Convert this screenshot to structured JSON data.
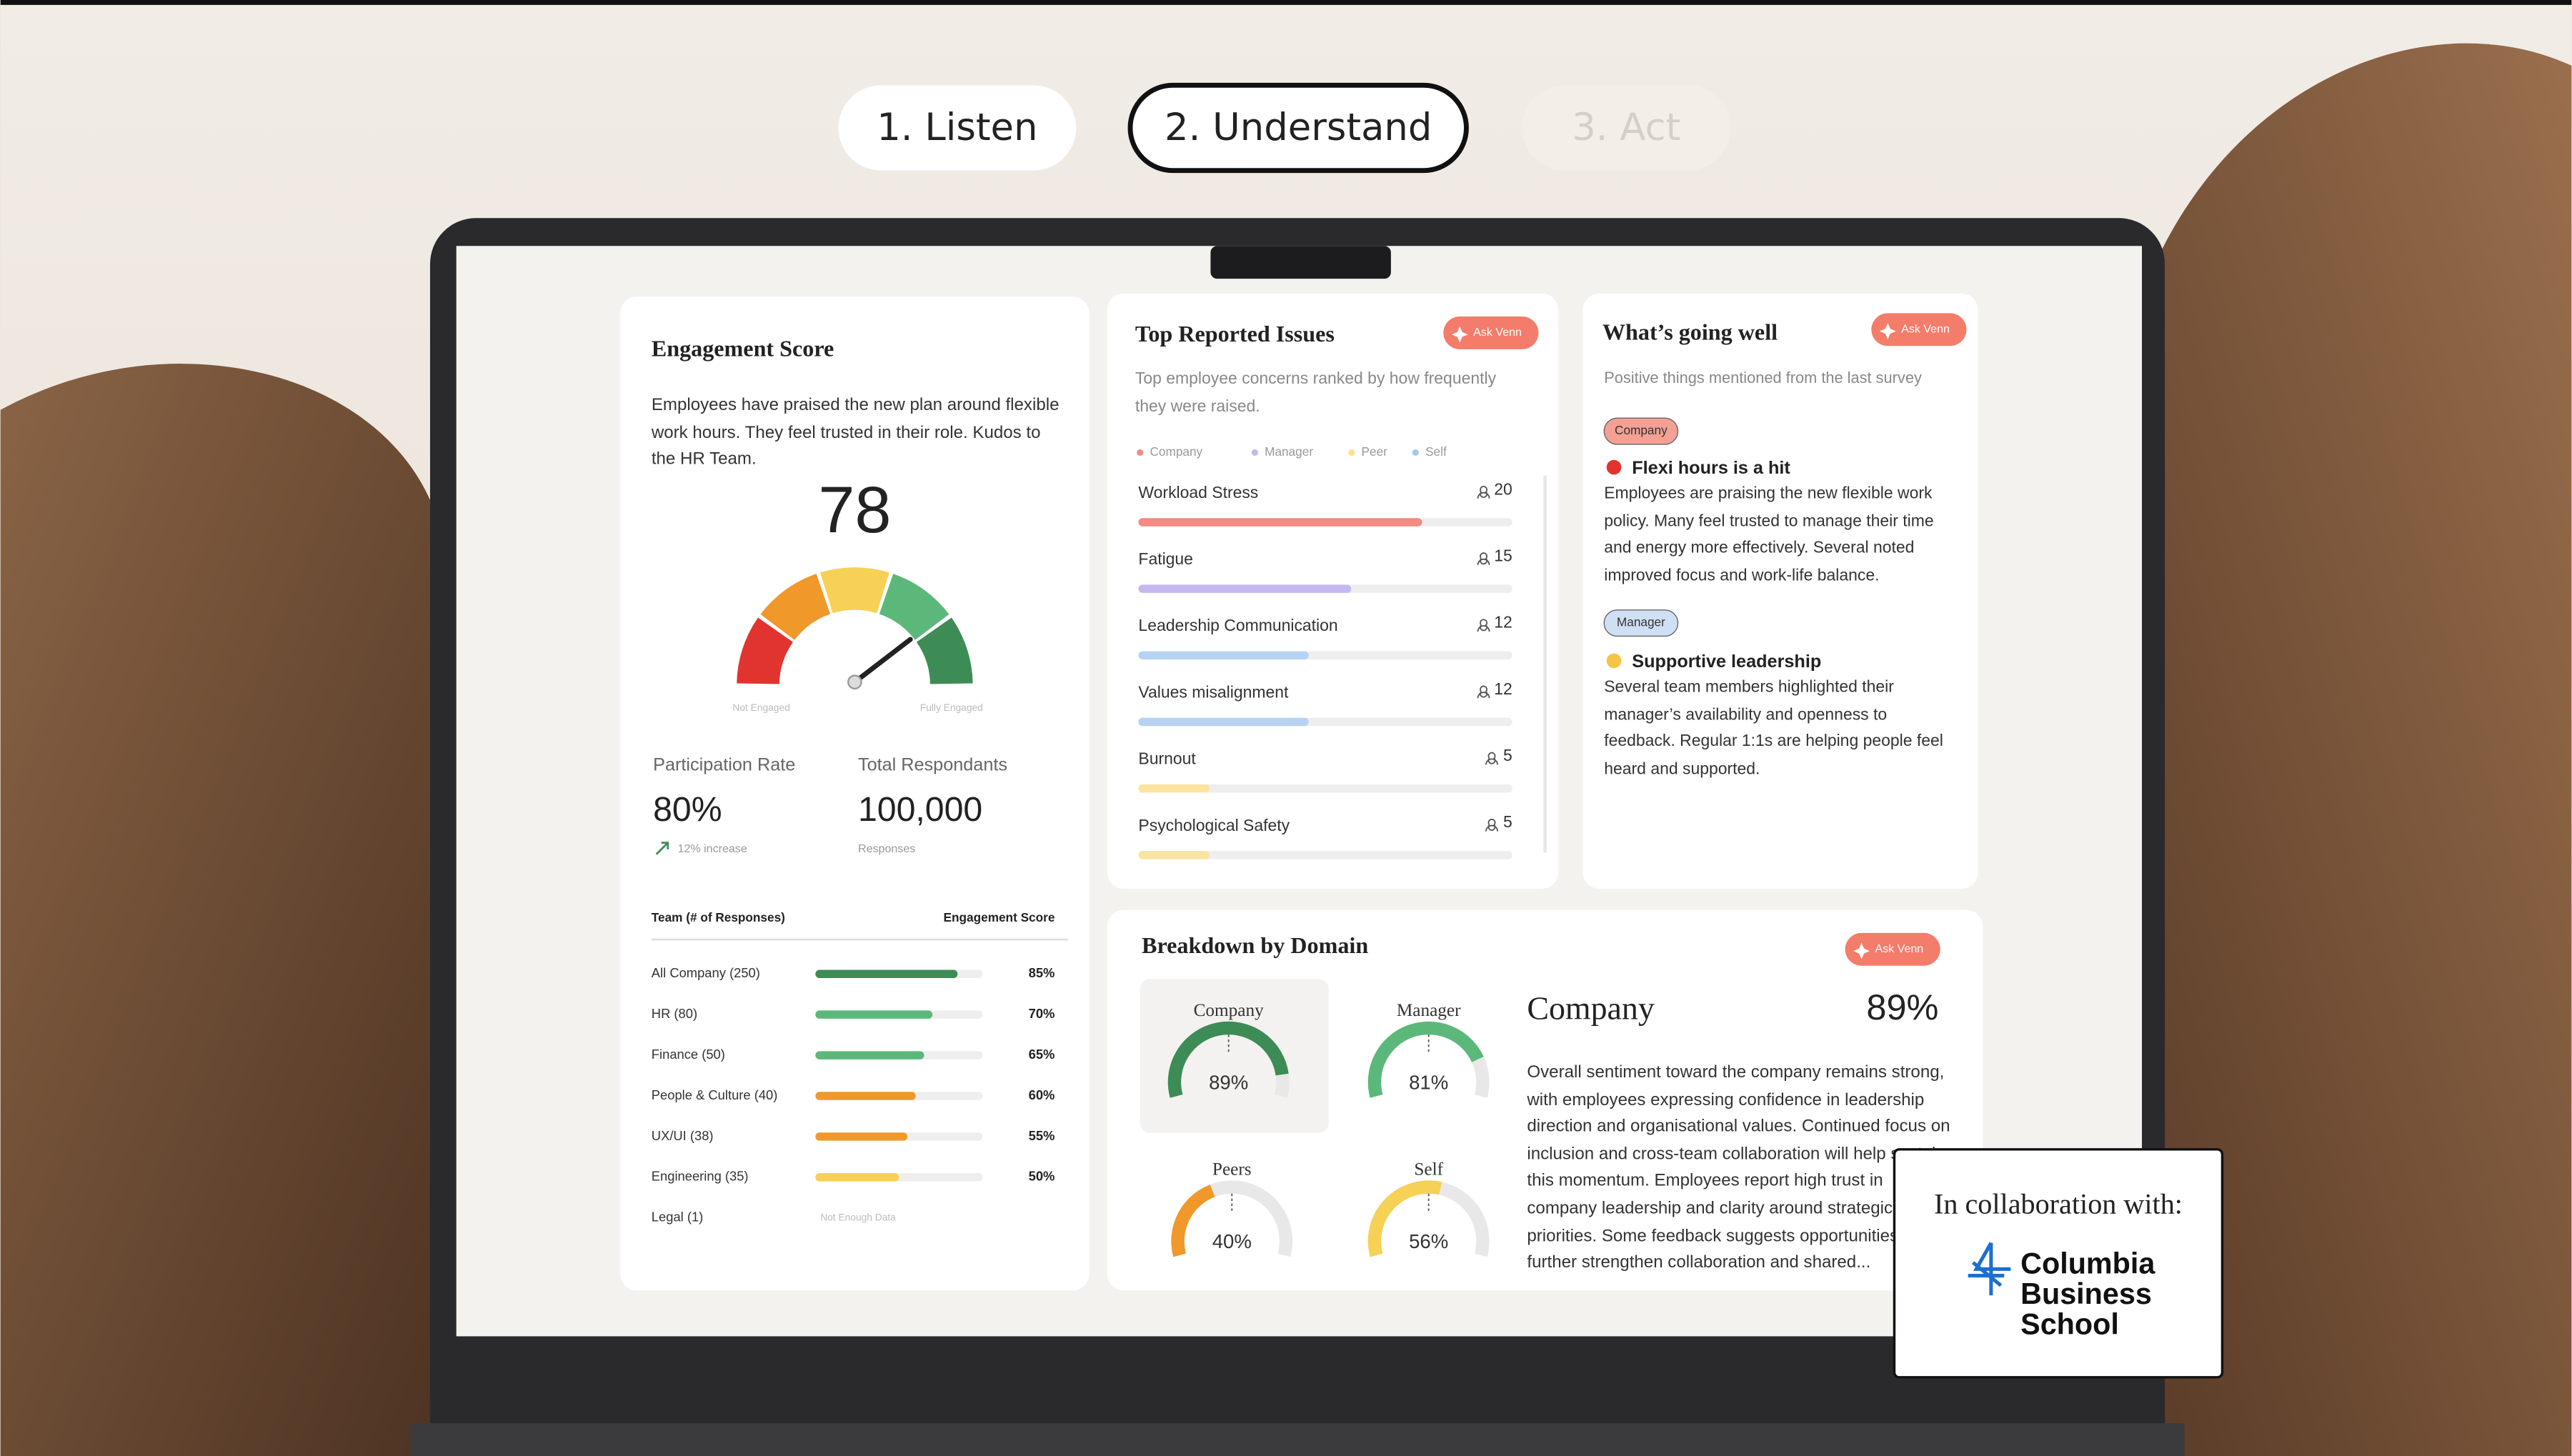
{
  "tabs": [
    "1. Listen",
    "2. Understand",
    "3. Act"
  ],
  "engagement": {
    "title": "Engagement Score",
    "description": "Employees have praised the new plan around flexible work hours. They feel trusted in their role. Kudos to the HR Team.",
    "score": 78,
    "gauge_min_label": "Not Engaged",
    "gauge_max_label": "Fully Engaged",
    "participation": {
      "label": "Participation Rate",
      "value": "80%",
      "note": "12% increase"
    },
    "respondents": {
      "label": "Total Respondants",
      "value": "100,000",
      "note": "Responses"
    },
    "table": {
      "headers": [
        "Team (# of Responses)",
        "Engagement Score"
      ],
      "rows": [
        {
          "team": "All Company (250)",
          "score": 85,
          "score_label": "85%",
          "color": "#3d8c55"
        },
        {
          "team": "HR (80)",
          "score": 70,
          "score_label": "70%",
          "color": "#5cb87a"
        },
        {
          "team": "Finance (50)",
          "score": 65,
          "score_label": "65%",
          "color": "#5cb87a"
        },
        {
          "team": "People & Culture (40)",
          "score": 60,
          "score_label": "60%",
          "color": "#f0982a"
        },
        {
          "team": "UX/UI (38)",
          "score": 55,
          "score_label": "55%",
          "color": "#f0982a"
        },
        {
          "team": "Engineering (35)",
          "score": 50,
          "score_label": "50%",
          "color": "#f6d155"
        },
        {
          "team": "Legal (1)",
          "score": null,
          "score_label": "Not Enough Data",
          "color": "#cccccc"
        }
      ]
    }
  },
  "issues": {
    "title": "Top Reported Issues",
    "ask": "Ask Venn",
    "subtitle": "Top employee concerns ranked by how frequently they were raised.",
    "legend": [
      {
        "name": "Company",
        "color": "#f28b82"
      },
      {
        "name": "Manager",
        "color": "#c5b8f0"
      },
      {
        "name": "Peer",
        "color": "#ffe08a"
      },
      {
        "name": "Self",
        "color": "#a8c7f0"
      }
    ],
    "items": [
      {
        "name": "Workload Stress",
        "count": 20,
        "color": "#f28b82"
      },
      {
        "name": "Fatigue",
        "count": 15,
        "color": "#c5b8f0"
      },
      {
        "name": "Leadership Communication",
        "count": 12,
        "color": "#b7d3f4"
      },
      {
        "name": "Values misalignment",
        "count": 12,
        "color": "#b7d3f4"
      },
      {
        "name": "Burnout",
        "count": 5,
        "color": "#fbe3a0"
      },
      {
        "name": "Psychological Safety",
        "count": 5,
        "color": "#fbe3a0"
      }
    ]
  },
  "going_well": {
    "title": "What’s going well",
    "ask": "Ask Venn",
    "subtitle": "Positive things mentioned from the last survey",
    "items": [
      {
        "tag": "Company",
        "tag_color": "#f4a094",
        "title": "Flexi hours is a hit",
        "text": "Employees are praising the new flexible work policy. Many feel trusted to manage their time and energy more effectively. Several noted improved focus and work-life balance."
      },
      {
        "tag": "Manager",
        "tag_color": "#cfe0f5",
        "title": "Supportive leadership",
        "text": "Several team members highlighted their manager’s availability and openness to feedback. Regular 1:1s are helping people feel heard and supported."
      }
    ]
  },
  "breakdown": {
    "title": "Breakdown by Domain",
    "ask": "Ask Venn",
    "domains": [
      {
        "name": "Company",
        "value": 89,
        "label": "89%",
        "color": "#3d8c55"
      },
      {
        "name": "Manager",
        "value": 81,
        "label": "81%",
        "color": "#5cb87a"
      },
      {
        "name": "Peers",
        "value": 40,
        "label": "40%",
        "color": "#f0982a"
      },
      {
        "name": "Self",
        "value": 56,
        "label": "56%",
        "color": "#f6d155"
      }
    ],
    "detail": {
      "name": "Company",
      "value": "89%",
      "text": "Overall sentiment toward the company remains strong, with employees expressing confidence in leadership direction and organisational values. Continued focus on inclusion and cross-team collaboration will help sustain this momentum. Employees report high trust in company leadership and clarity around strategic priorities. Some feedback suggests opportunities to further strengthen collaboration and shared..."
    }
  },
  "collaboration": {
    "label": "In collaboration with:",
    "logo_lines": [
      "Columbia",
      "Business",
      "School"
    ]
  }
}
